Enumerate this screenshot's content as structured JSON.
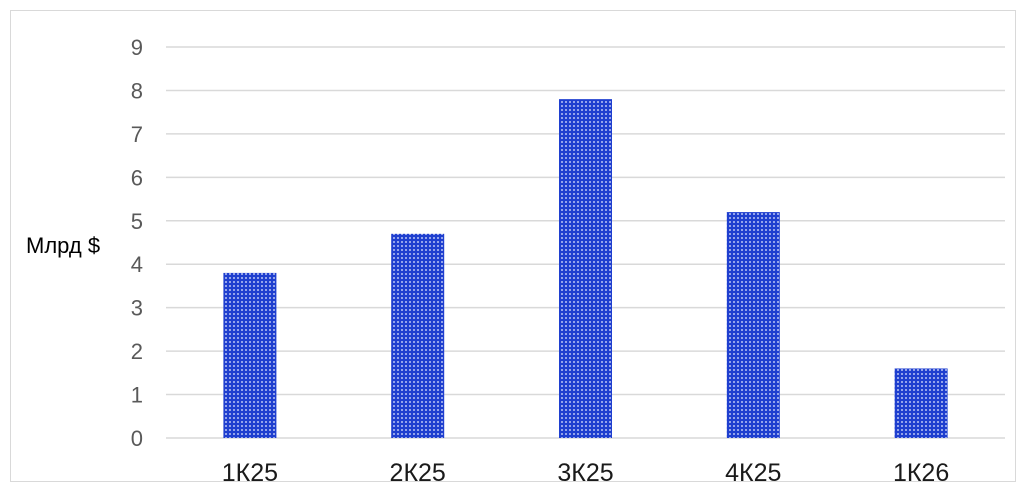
{
  "chart_data": {
    "type": "bar",
    "categories": [
      "1К25",
      "2К25",
      "3К25",
      "4К25",
      "1К26"
    ],
    "values": [
      3.8,
      4.7,
      7.8,
      5.2,
      1.6
    ],
    "title": "",
    "xlabel": "",
    "ylabel": "Млрд $",
    "ylim": [
      0,
      9
    ],
    "yticks": [
      0,
      1,
      2,
      3,
      4,
      5,
      6,
      7,
      8,
      9
    ],
    "grid": true,
    "legend": "none",
    "bar_color": "#1f3fcf",
    "bar_fill_pattern": "dotted"
  }
}
